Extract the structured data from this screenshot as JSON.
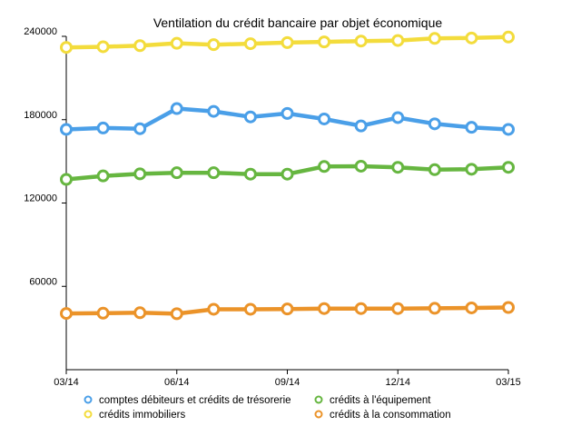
{
  "chart_data": {
    "type": "line",
    "title": "Ventilation du crédit bancaire par objet économique",
    "xlabel": "",
    "ylabel": "",
    "x": [
      "03/14",
      "04/14",
      "05/14",
      "06/14",
      "07/14",
      "08/14",
      "09/14",
      "10/14",
      "11/14",
      "12/14",
      "01/15",
      "02/15",
      "03/15"
    ],
    "x_tick_labels": [
      "03/14",
      "06/14",
      "09/14",
      "12/14",
      "03/15"
    ],
    "y_ticks": [
      "60000",
      "120000",
      "180000",
      "240000"
    ],
    "ylim": [
      0,
      240000
    ],
    "grid": false,
    "legend_position": "bottom",
    "series": [
      {
        "name": "comptes débiteurs et crédits de trésorerie",
        "color": "#4a9fe8",
        "values": [
          173000,
          174000,
          173500,
          188000,
          186000,
          182000,
          184500,
          180500,
          175500,
          181500,
          177000,
          174500,
          173000
        ]
      },
      {
        "name": "crédits à l'équipement",
        "color": "#66b640",
        "values": [
          137000,
          139500,
          141000,
          141800,
          141800,
          140800,
          140800,
          146300,
          146500,
          145700,
          144000,
          144300,
          145700
        ]
      },
      {
        "name": "crédits immobiliers",
        "color": "#f3dc3c",
        "values": [
          232000,
          232500,
          233300,
          235000,
          234000,
          234700,
          235500,
          236000,
          236600,
          237000,
          238500,
          238800,
          239500
        ]
      },
      {
        "name": "crédits à la consommation",
        "color": "#eb9329",
        "values": [
          40500,
          40700,
          41000,
          40300,
          43500,
          43500,
          43700,
          44000,
          44000,
          44000,
          44200,
          44500,
          44800
        ]
      }
    ]
  }
}
